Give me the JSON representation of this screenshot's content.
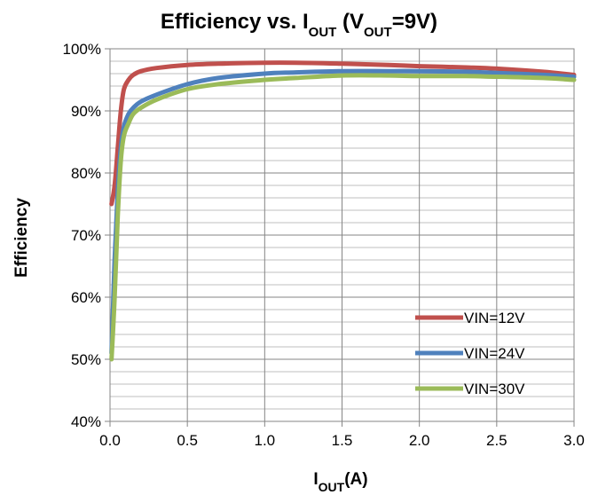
{
  "chart_data": {
    "type": "line",
    "title": {
      "main": "Efficiency vs. I",
      "sub1": "OUT",
      "mid1": " (V",
      "sub2": "OUT",
      "end": "=9V)"
    },
    "xlabel": {
      "main": "I",
      "sub": "OUT",
      "end": "(A)"
    },
    "ylabel": "Efficiency",
    "xlim": [
      0,
      3.0
    ],
    "ylim": [
      40,
      100
    ],
    "x_ticks": [
      {
        "value": 0.0,
        "label": "0.0"
      },
      {
        "value": 0.5,
        "label": "0.5"
      },
      {
        "value": 1.0,
        "label": "1.0"
      },
      {
        "value": 1.5,
        "label": "1.5"
      },
      {
        "value": 2.0,
        "label": "2.0"
      },
      {
        "value": 2.5,
        "label": "2.5"
      },
      {
        "value": 3.0,
        "label": "3.0"
      }
    ],
    "y_ticks": [
      {
        "value": 40,
        "label": "40%"
      },
      {
        "value": 50,
        "label": "50%"
      },
      {
        "value": 60,
        "label": "60%"
      },
      {
        "value": 70,
        "label": "70%"
      },
      {
        "value": 80,
        "label": "80%"
      },
      {
        "value": 90,
        "label": "90%"
      },
      {
        "value": 100,
        "label": "100%"
      }
    ],
    "grid": true,
    "legend_position": "bottom-right",
    "series": [
      {
        "name": "VIN=12V",
        "color": "#C0504D",
        "x": [
          0.01,
          0.03,
          0.05,
          0.07,
          0.09,
          0.12,
          0.15,
          0.2,
          0.3,
          0.5,
          0.7,
          1.0,
          1.2,
          1.5,
          1.8,
          2.0,
          2.3,
          2.5,
          2.8,
          3.0
        ],
        "y": [
          75,
          78,
          84,
          90,
          93.5,
          95,
          95.8,
          96.4,
          96.9,
          97.4,
          97.6,
          97.75,
          97.75,
          97.6,
          97.4,
          97.2,
          97.0,
          96.8,
          96.3,
          95.8
        ]
      },
      {
        "name": "VIN=24V",
        "color": "#4F81BD",
        "x": [
          0.01,
          0.03,
          0.05,
          0.07,
          0.09,
          0.12,
          0.15,
          0.2,
          0.3,
          0.5,
          0.7,
          1.0,
          1.2,
          1.5,
          1.8,
          2.0,
          2.3,
          2.5,
          2.8,
          3.0
        ],
        "y": [
          51,
          66,
          77,
          84,
          87.5,
          89.5,
          90.5,
          91.5,
          92.6,
          94.3,
          95.3,
          96.0,
          96.2,
          96.4,
          96.4,
          96.4,
          96.3,
          96.1,
          95.8,
          95.5
        ]
      },
      {
        "name": "VIN=30V",
        "color": "#9BBB59",
        "x": [
          0.01,
          0.03,
          0.05,
          0.07,
          0.09,
          0.12,
          0.15,
          0.2,
          0.3,
          0.5,
          0.7,
          1.0,
          1.2,
          1.5,
          1.8,
          2.0,
          2.3,
          2.5,
          2.8,
          3.0
        ],
        "y": [
          50,
          60,
          73,
          82,
          86,
          88,
          89.5,
          90.5,
          91.8,
          93.5,
          94.3,
          95.0,
          95.3,
          95.7,
          95.7,
          95.6,
          95.6,
          95.5,
          95.3,
          95.0
        ]
      }
    ]
  }
}
